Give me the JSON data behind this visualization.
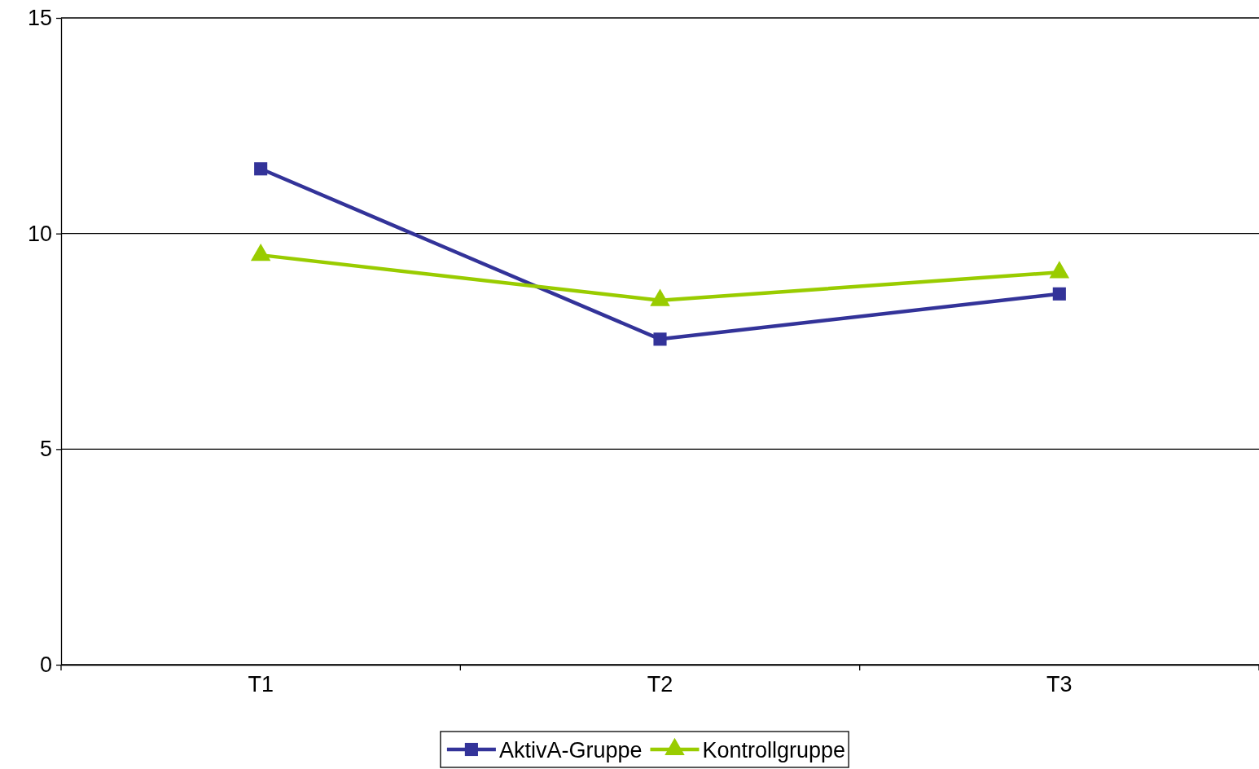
{
  "chart_data": {
    "type": "line",
    "categories": [
      "T1",
      "T2",
      "T3"
    ],
    "series": [
      {
        "name": "AktivA-Gruppe",
        "color": "#333399",
        "marker": "square",
        "values": [
          11.5,
          7.55,
          8.6
        ]
      },
      {
        "name": "Kontrollgruppe",
        "color": "#99cc00",
        "marker": "triangle",
        "values": [
          9.5,
          8.45,
          9.1
        ]
      }
    ],
    "ylim": [
      0,
      15
    ],
    "yticks": [
      0,
      5,
      10,
      15
    ],
    "grid": "y",
    "legend": "bottom",
    "line_style": "solid"
  }
}
